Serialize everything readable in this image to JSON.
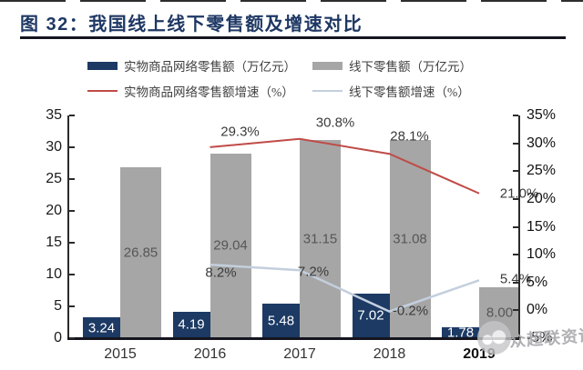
{
  "title": "图 32：我国线上线下零售额及增速对比",
  "legend": [
    {
      "label": "实物商品网络零售额（万亿元）",
      "type": "bar",
      "color": "#1c3a64"
    },
    {
      "label": "线下零售额（万亿元）",
      "type": "bar",
      "color": "#a6a6a6"
    },
    {
      "label": "实物商品网络零售额增速（%）",
      "type": "line",
      "color": "#bf4b47"
    },
    {
      "label": "线下零售额增速（%）",
      "type": "line",
      "color": "#c3cfdd"
    }
  ],
  "chart_data": {
    "type": "bar",
    "subtype": "grouped bars with two growth-rate lines (dual axis combo)",
    "title": "图 32：我国线上线下零售额及增速对比",
    "categories": [
      "2015",
      "2016",
      "2017",
      "2018",
      "2019"
    ],
    "series": [
      {
        "name": "实物商品网络零售额（万亿元）",
        "type": "bar",
        "axis": "left",
        "color": "#1c3a64",
        "values": [
          3.24,
          4.19,
          5.48,
          7.02,
          1.78
        ],
        "labels": [
          "3.24",
          "4.19",
          "5.48",
          "7.02",
          "1.78"
        ]
      },
      {
        "name": "线下零售额（万亿元）",
        "type": "bar",
        "axis": "left",
        "color": "#a6a6a6",
        "values": [
          26.85,
          29.04,
          31.15,
          31.08,
          8.0
        ],
        "labels": [
          "26.85",
          "29.04",
          "31.15",
          "31.08",
          "8.00"
        ]
      },
      {
        "name": "实物商品网络零售额增速（%）",
        "type": "line",
        "axis": "right",
        "color": "#bf4b47",
        "values": [
          null,
          29.3,
          30.8,
          28.1,
          21.0
        ],
        "labels": [
          null,
          "29.3%",
          "30.8%",
          "28.1%",
          "21.0%"
        ]
      },
      {
        "name": "线下零售额增速（%）",
        "type": "line",
        "axis": "right",
        "color": "#c3cfdd",
        "values": [
          null,
          8.2,
          7.2,
          -0.2,
          5.4
        ],
        "labels": [
          null,
          "8.2%",
          "7.2%",
          "-0.2%",
          "5.4%"
        ]
      }
    ],
    "left_axis": {
      "min": 0,
      "max": 35,
      "ticks": [
        "0",
        "5",
        "10",
        "15",
        "20",
        "25",
        "30",
        "35"
      ]
    },
    "right_axis": {
      "min": -5,
      "max": 35,
      "ticks": [
        "-5%",
        "0%",
        "5%",
        "10%",
        "15%",
        "20%",
        "25%",
        "30%",
        "35%"
      ]
    },
    "grid": false,
    "legend_position": "top"
  },
  "watermark": {
    "text": "众超联资讯"
  }
}
